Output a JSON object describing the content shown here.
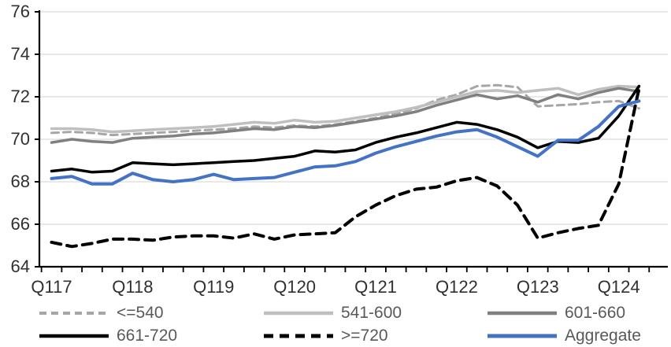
{
  "chart_data": {
    "type": "line",
    "title": "",
    "xlabel": "",
    "ylabel": "",
    "x": [
      "Q117",
      "Q217",
      "Q317",
      "Q417",
      "Q118",
      "Q218",
      "Q318",
      "Q418",
      "Q119",
      "Q219",
      "Q319",
      "Q419",
      "Q120",
      "Q220",
      "Q320",
      "Q420",
      "Q121",
      "Q221",
      "Q321",
      "Q421",
      "Q122",
      "Q222",
      "Q322",
      "Q422",
      "Q123",
      "Q223",
      "Q323",
      "Q423",
      "Q124",
      "Q224"
    ],
    "x_axis_tick_labels": [
      "Q117",
      "Q118",
      "Q119",
      "Q120",
      "Q121",
      "Q122",
      "Q123",
      "Q124"
    ],
    "x_label_indices": [
      0,
      4,
      8,
      12,
      16,
      20,
      24,
      28
    ],
    "ylim": [
      64,
      76
    ],
    "yticks": [
      64,
      66,
      68,
      70,
      72,
      74,
      76
    ],
    "grid": "horizontal",
    "legend_position": "bottom",
    "series": [
      {
        "name": "<=540",
        "color": "#A6A6A6",
        "dash": "dashed",
        "width": 3,
        "values": [
          70.3,
          70.35,
          70.3,
          70.2,
          70.25,
          70.3,
          70.35,
          70.4,
          70.45,
          70.5,
          70.6,
          70.55,
          70.65,
          70.6,
          70.7,
          70.85,
          71.0,
          71.2,
          71.45,
          71.85,
          72.1,
          72.5,
          72.55,
          72.45,
          71.55,
          71.6,
          71.65,
          71.75,
          71.8,
          71.45
        ]
      },
      {
        "name": "541-600",
        "color": "#BFBFBF",
        "dash": "solid",
        "width": 3.5,
        "values": [
          70.5,
          70.5,
          70.45,
          70.35,
          70.4,
          70.45,
          70.5,
          70.55,
          70.6,
          70.7,
          70.8,
          70.75,
          70.9,
          70.8,
          70.85,
          71.0,
          71.15,
          71.3,
          71.5,
          71.75,
          72.0,
          72.25,
          72.3,
          72.2,
          72.3,
          72.4,
          72.1,
          72.35,
          72.5,
          72.45
        ]
      },
      {
        "name": "601-660",
        "color": "#808080",
        "dash": "solid",
        "width": 3.5,
        "values": [
          69.85,
          70.0,
          69.9,
          69.85,
          70.05,
          70.1,
          70.15,
          70.25,
          70.3,
          70.4,
          70.5,
          70.45,
          70.6,
          70.55,
          70.65,
          70.8,
          70.95,
          71.1,
          71.3,
          71.6,
          71.85,
          72.1,
          71.9,
          72.05,
          71.75,
          72.1,
          71.9,
          72.2,
          72.4,
          72.25
        ]
      },
      {
        "name": "661-720",
        "color": "#000000",
        "dash": "solid",
        "width": 3.5,
        "values": [
          68.5,
          68.6,
          68.45,
          68.5,
          68.9,
          68.85,
          68.8,
          68.85,
          68.9,
          68.95,
          69.0,
          69.1,
          69.2,
          69.45,
          69.4,
          69.5,
          69.85,
          70.1,
          70.3,
          70.55,
          70.8,
          70.7,
          70.45,
          70.1,
          69.6,
          69.9,
          69.85,
          70.05,
          71.1,
          72.5
        ]
      },
      {
        "name": ">=720",
        "color": "#000000",
        "dash": "dashed",
        "width": 4,
        "values": [
          65.15,
          64.95,
          65.1,
          65.3,
          65.3,
          65.25,
          65.4,
          65.45,
          65.45,
          65.35,
          65.55,
          65.3,
          65.5,
          65.55,
          65.6,
          66.35,
          66.9,
          67.35,
          67.65,
          67.75,
          68.05,
          68.2,
          67.8,
          66.9,
          65.35,
          65.6,
          65.8,
          65.95,
          67.9,
          72.4
        ]
      },
      {
        "name": "Aggregate",
        "color": "#4472C4",
        "dash": "solid",
        "width": 4,
        "values": [
          68.15,
          68.25,
          67.9,
          67.9,
          68.4,
          68.1,
          68.0,
          68.1,
          68.35,
          68.1,
          68.15,
          68.2,
          68.45,
          68.7,
          68.75,
          68.95,
          69.35,
          69.65,
          69.9,
          70.15,
          70.35,
          70.45,
          70.1,
          69.65,
          69.2,
          69.95,
          69.95,
          70.6,
          71.55,
          71.8
        ]
      }
    ]
  },
  "colors": {
    "background": "#FFFFFF",
    "gridline": "#D9D9D9",
    "axis": "#000000",
    "axis_tick_label": "#303030",
    "legend_label": "#595959",
    "accent_blue": "#4472C4"
  }
}
